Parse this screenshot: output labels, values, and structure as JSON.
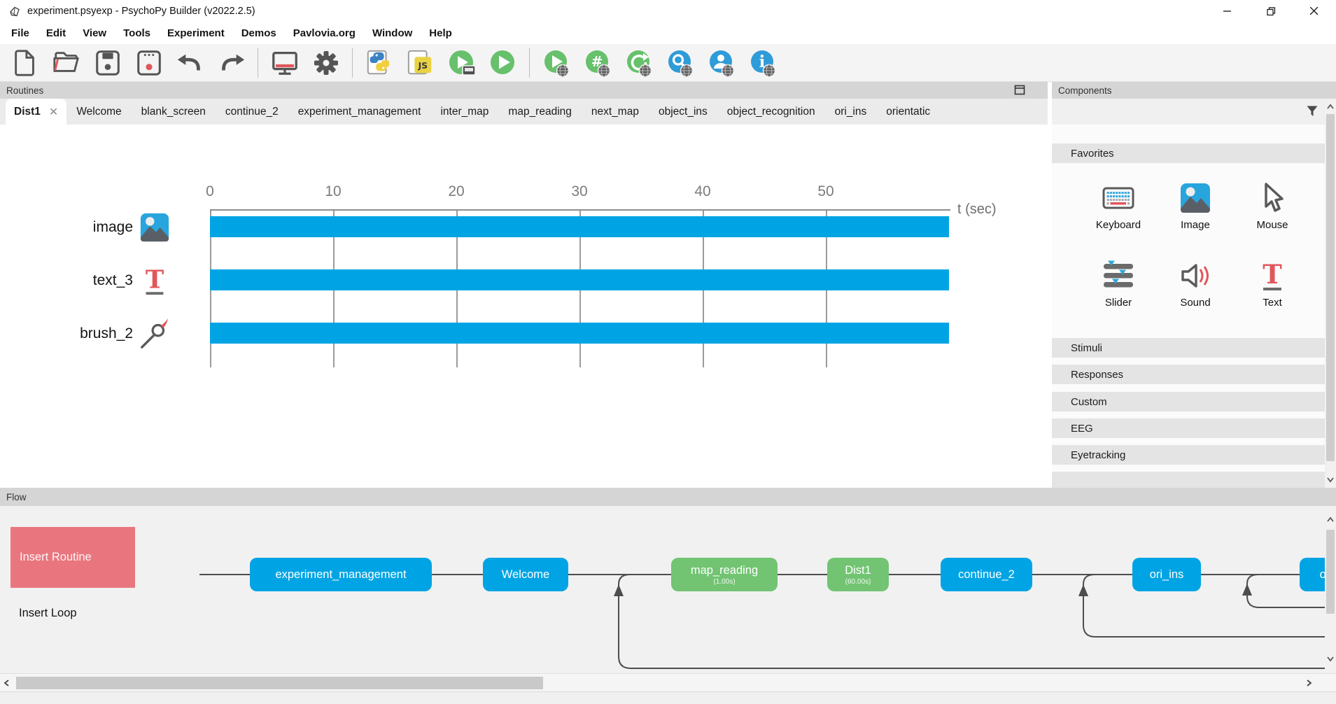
{
  "window": {
    "title": "experiment.psyexp - PsychoPy Builder (v2022.2.5)",
    "controls": [
      "minimize",
      "maximize",
      "close"
    ]
  },
  "menu": {
    "items": [
      "File",
      "Edit",
      "View",
      "Tools",
      "Experiment",
      "Demos",
      "Pavlovia.org",
      "Window",
      "Help"
    ]
  },
  "toolbar": {
    "icons": [
      "new-file",
      "open-file",
      "save",
      "save-as",
      "undo",
      "redo",
      "monitor-center",
      "experiment-settings",
      "compile-python",
      "compile-js",
      "send-to-runner",
      "run-experiment",
      "run-online",
      "run-online-debug",
      "sync-pavlovia",
      "search-pavlovia",
      "pavlovia-user",
      "pavlovia-info"
    ]
  },
  "routines": {
    "panel_title": "Routines",
    "tabs": [
      {
        "label": "Dist1",
        "active": true
      },
      {
        "label": "Welcome"
      },
      {
        "label": "blank_screen"
      },
      {
        "label": "continue_2"
      },
      {
        "label": "experiment_management"
      },
      {
        "label": "inter_map"
      },
      {
        "label": "map_reading"
      },
      {
        "label": "next_map"
      },
      {
        "label": "object_ins"
      },
      {
        "label": "object_recognition"
      },
      {
        "label": "ori_ins"
      },
      {
        "label": "orientatic"
      }
    ],
    "timeline": {
      "xlabel": "t (sec)",
      "ticks": [
        0,
        10,
        20,
        30,
        40,
        50
      ],
      "xmax": 60,
      "rows": [
        {
          "name": "image",
          "icon": "image-icon",
          "start": 0,
          "stop": 60
        },
        {
          "name": "text_3",
          "icon": "text-icon",
          "start": 0,
          "stop": 60
        },
        {
          "name": "brush_2",
          "icon": "brush-icon",
          "start": 0,
          "stop": 60
        }
      ]
    }
  },
  "components": {
    "panel_title": "Components",
    "favorites_title": "Favorites",
    "favorites": [
      {
        "label": "Keyboard",
        "icon": "keyboard-icon"
      },
      {
        "label": "Image",
        "icon": "image-icon"
      },
      {
        "label": "Mouse",
        "icon": "mouse-icon"
      },
      {
        "label": "Slider",
        "icon": "slider-icon"
      },
      {
        "label": "Sound",
        "icon": "sound-icon"
      },
      {
        "label": "Text",
        "icon": "text-icon"
      }
    ],
    "sections": [
      "Stimuli",
      "Responses",
      "Custom",
      "EEG",
      "Eyetracking"
    ]
  },
  "flow": {
    "panel_title": "Flow",
    "insert_routine_label": "Insert Routine",
    "insert_loop_label": "Insert Loop",
    "nodes": [
      {
        "label": "experiment_management",
        "color": "blue"
      },
      {
        "label": "Welcome",
        "color": "blue"
      },
      {
        "label": "map_reading",
        "color": "green",
        "duration": "(1.00s)"
      },
      {
        "label": "Dist1",
        "color": "green",
        "duration": "(60.00s)"
      },
      {
        "label": "continue_2",
        "color": "blue"
      },
      {
        "label": "ori_ins",
        "color": "blue"
      },
      {
        "label": "or",
        "color": "blue",
        "clipped": true
      }
    ]
  },
  "colors": {
    "blue": "#00a4e4",
    "green": "#72c472",
    "red_button": "#e9767f",
    "accent_red": "#e0575b",
    "icon_gray": "#5a5a5a"
  }
}
